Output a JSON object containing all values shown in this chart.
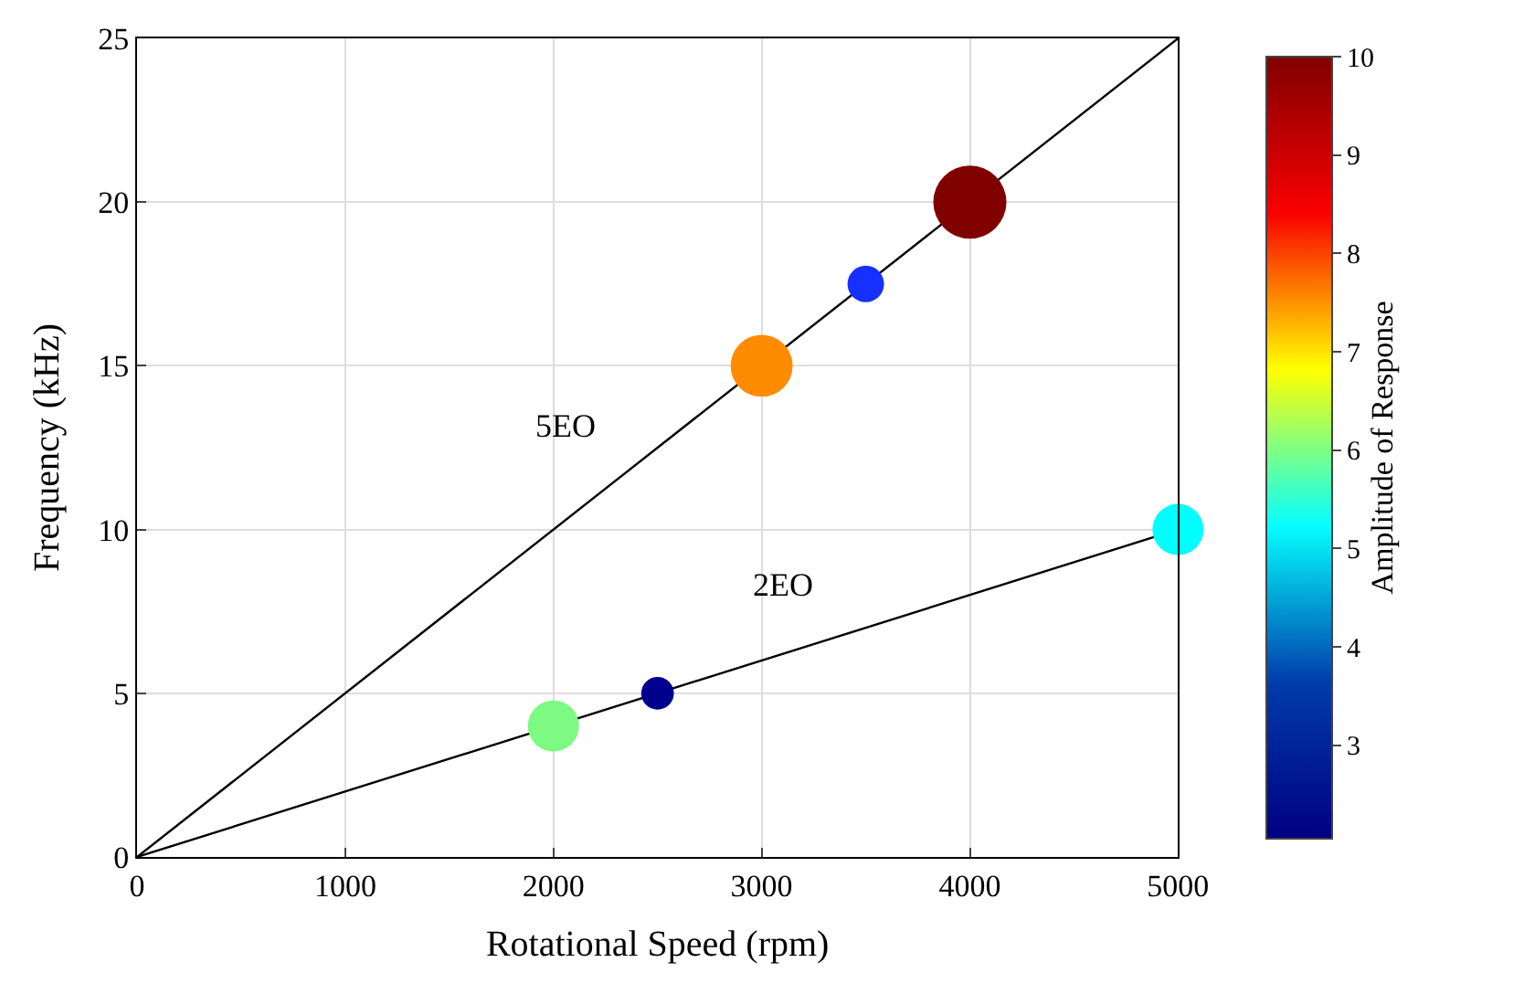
{
  "chart_data": {
    "type": "bubble",
    "xlabel": "Rotational Speed (rpm)",
    "ylabel": "Frequency (kHz)",
    "clabel": "Amplitude of Response",
    "xlim": [
      0,
      5000
    ],
    "xticks": [
      0,
      1000,
      2000,
      3000,
      4000,
      5000
    ],
    "ylim": [
      0,
      25
    ],
    "yticks": [
      0,
      5,
      10,
      15,
      20,
      25
    ],
    "clim": [
      2.05,
      10
    ],
    "cticks": [
      3,
      4,
      5,
      6,
      7,
      8,
      9,
      10
    ],
    "grid": true,
    "series": [
      {
        "type": "line",
        "name": "5EO",
        "color": "#000000",
        "x": [
          0,
          5000
        ],
        "values": [
          0,
          25
        ]
      },
      {
        "type": "line",
        "name": "2EO",
        "color": "#000000",
        "x": [
          0,
          5000
        ],
        "values": [
          0,
          10
        ]
      },
      {
        "x": [
          2000,
          2500,
          3000,
          3500,
          4000,
          5000
        ],
        "values": [
          4,
          5,
          15,
          17.5,
          20,
          10
        ],
        "sizes": [
          0.49,
          0.2,
          0.72,
          0.25,
          1,
          0.49
        ],
        "colors": [
          "#7cfa82",
          "#00008f",
          "#ff8c00",
          "#1530ff",
          "#800000",
          "#00ffff"
        ]
      }
    ]
  }
}
